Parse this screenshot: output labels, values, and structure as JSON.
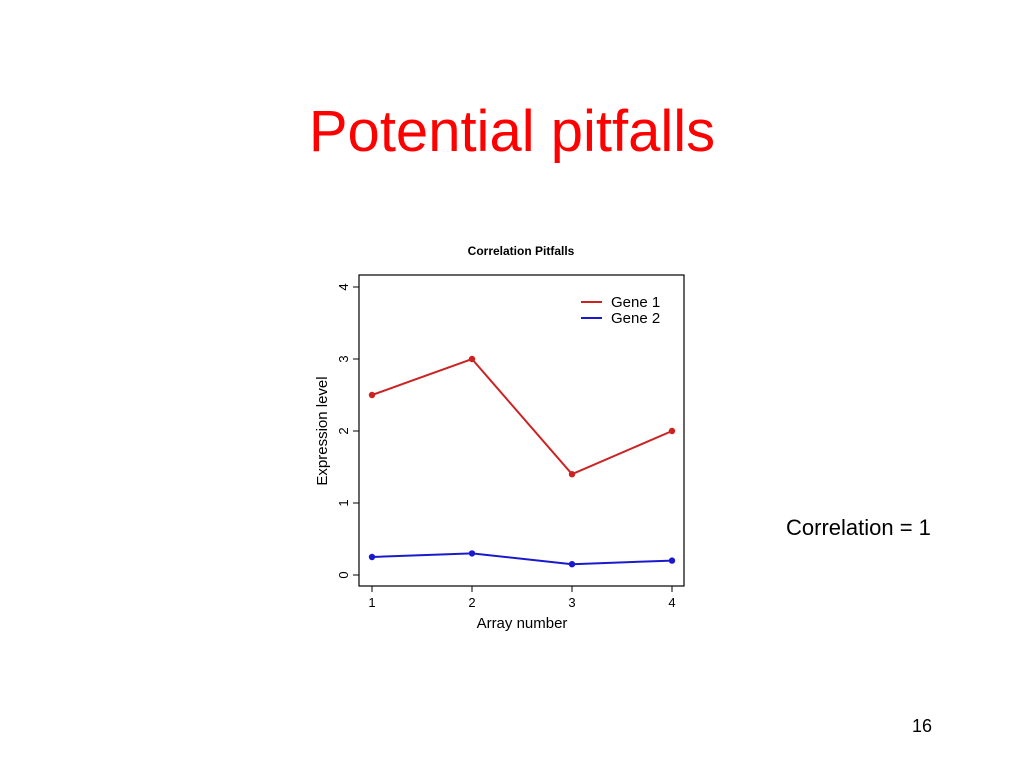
{
  "slide": {
    "title": "Potential pitfalls",
    "note": "Correlation = 1",
    "page_number": "16"
  },
  "chart_data": {
    "type": "line",
    "title": "Correlation Pitfalls",
    "xlabel": "Array number",
    "ylabel": "Expression level",
    "x": [
      1,
      2,
      3,
      4
    ],
    "xlim": [
      1,
      4
    ],
    "ylim": [
      0,
      4
    ],
    "xticks": [
      1,
      2,
      3,
      4
    ],
    "yticks": [
      0,
      1,
      2,
      3,
      4
    ],
    "grid": false,
    "legend_position": "top-right",
    "series": [
      {
        "name": "Gene 1",
        "color": "#cc2222",
        "marker_color": "#cc2222",
        "values": [
          2.5,
          3.0,
          1.4,
          2.0
        ]
      },
      {
        "name": "Gene 2",
        "color": "#1a1acc",
        "marker_color": "#1a1acc",
        "values": [
          0.25,
          0.3,
          0.15,
          0.2
        ]
      }
    ]
  }
}
